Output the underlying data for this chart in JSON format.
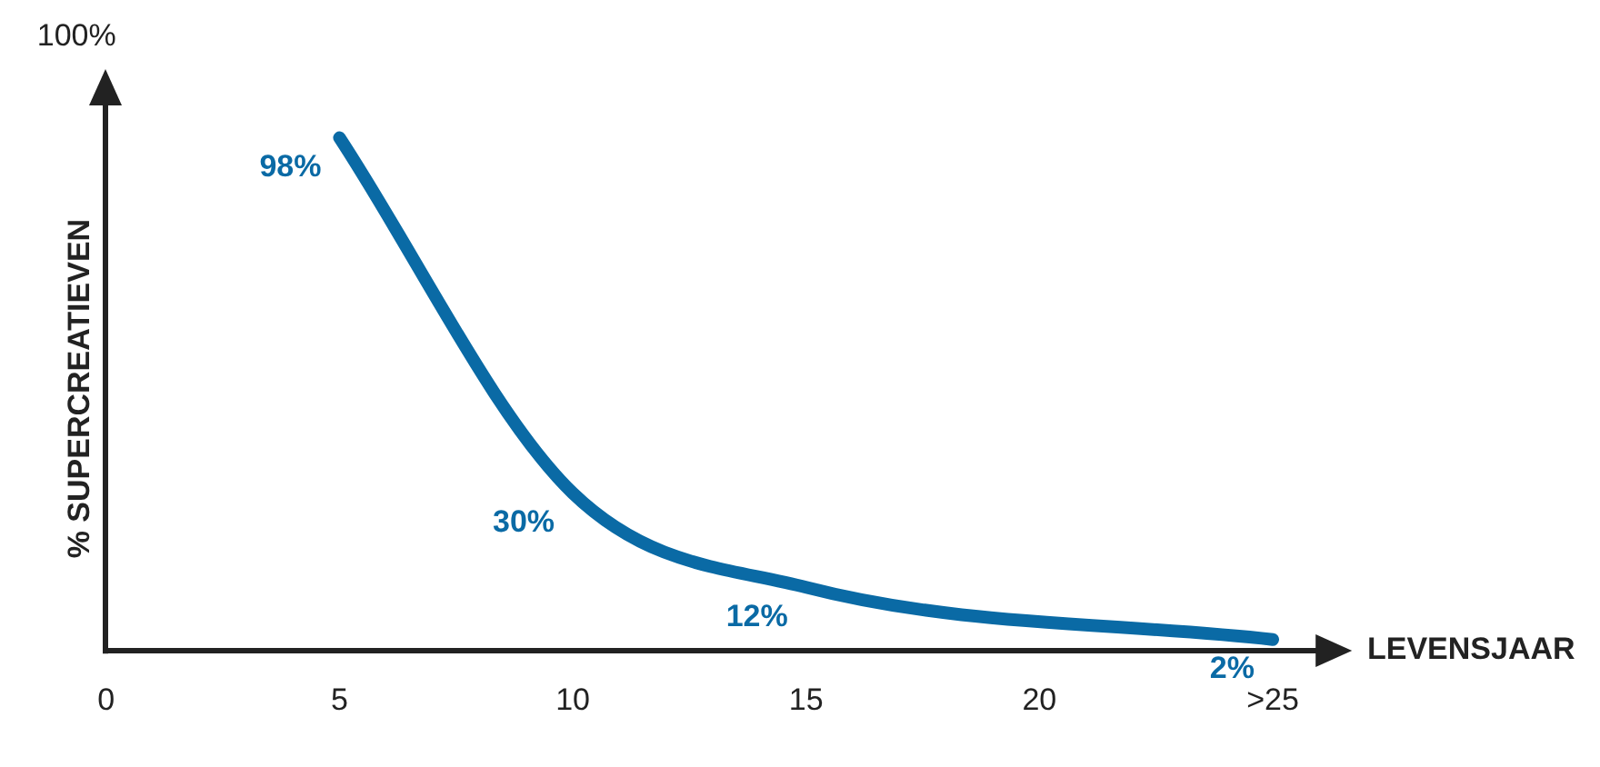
{
  "chart_data": {
    "type": "line",
    "xlabel": "LEVENSJAAR",
    "ylabel": "% SUPERCREATIEVEN",
    "categories": [
      "0",
      "5",
      "10",
      "15",
      "20",
      ">25"
    ],
    "series": [
      {
        "color": "#0a6aa5",
        "values": [
          null,
          98,
          30,
          12,
          null,
          2
        ],
        "value_labels": [
          null,
          "98%",
          "30%",
          "12%",
          null,
          "2%"
        ]
      }
    ],
    "annotations": [
      "100%"
    ],
    "legend": false,
    "marker": "none",
    "line_style": "solid"
  }
}
